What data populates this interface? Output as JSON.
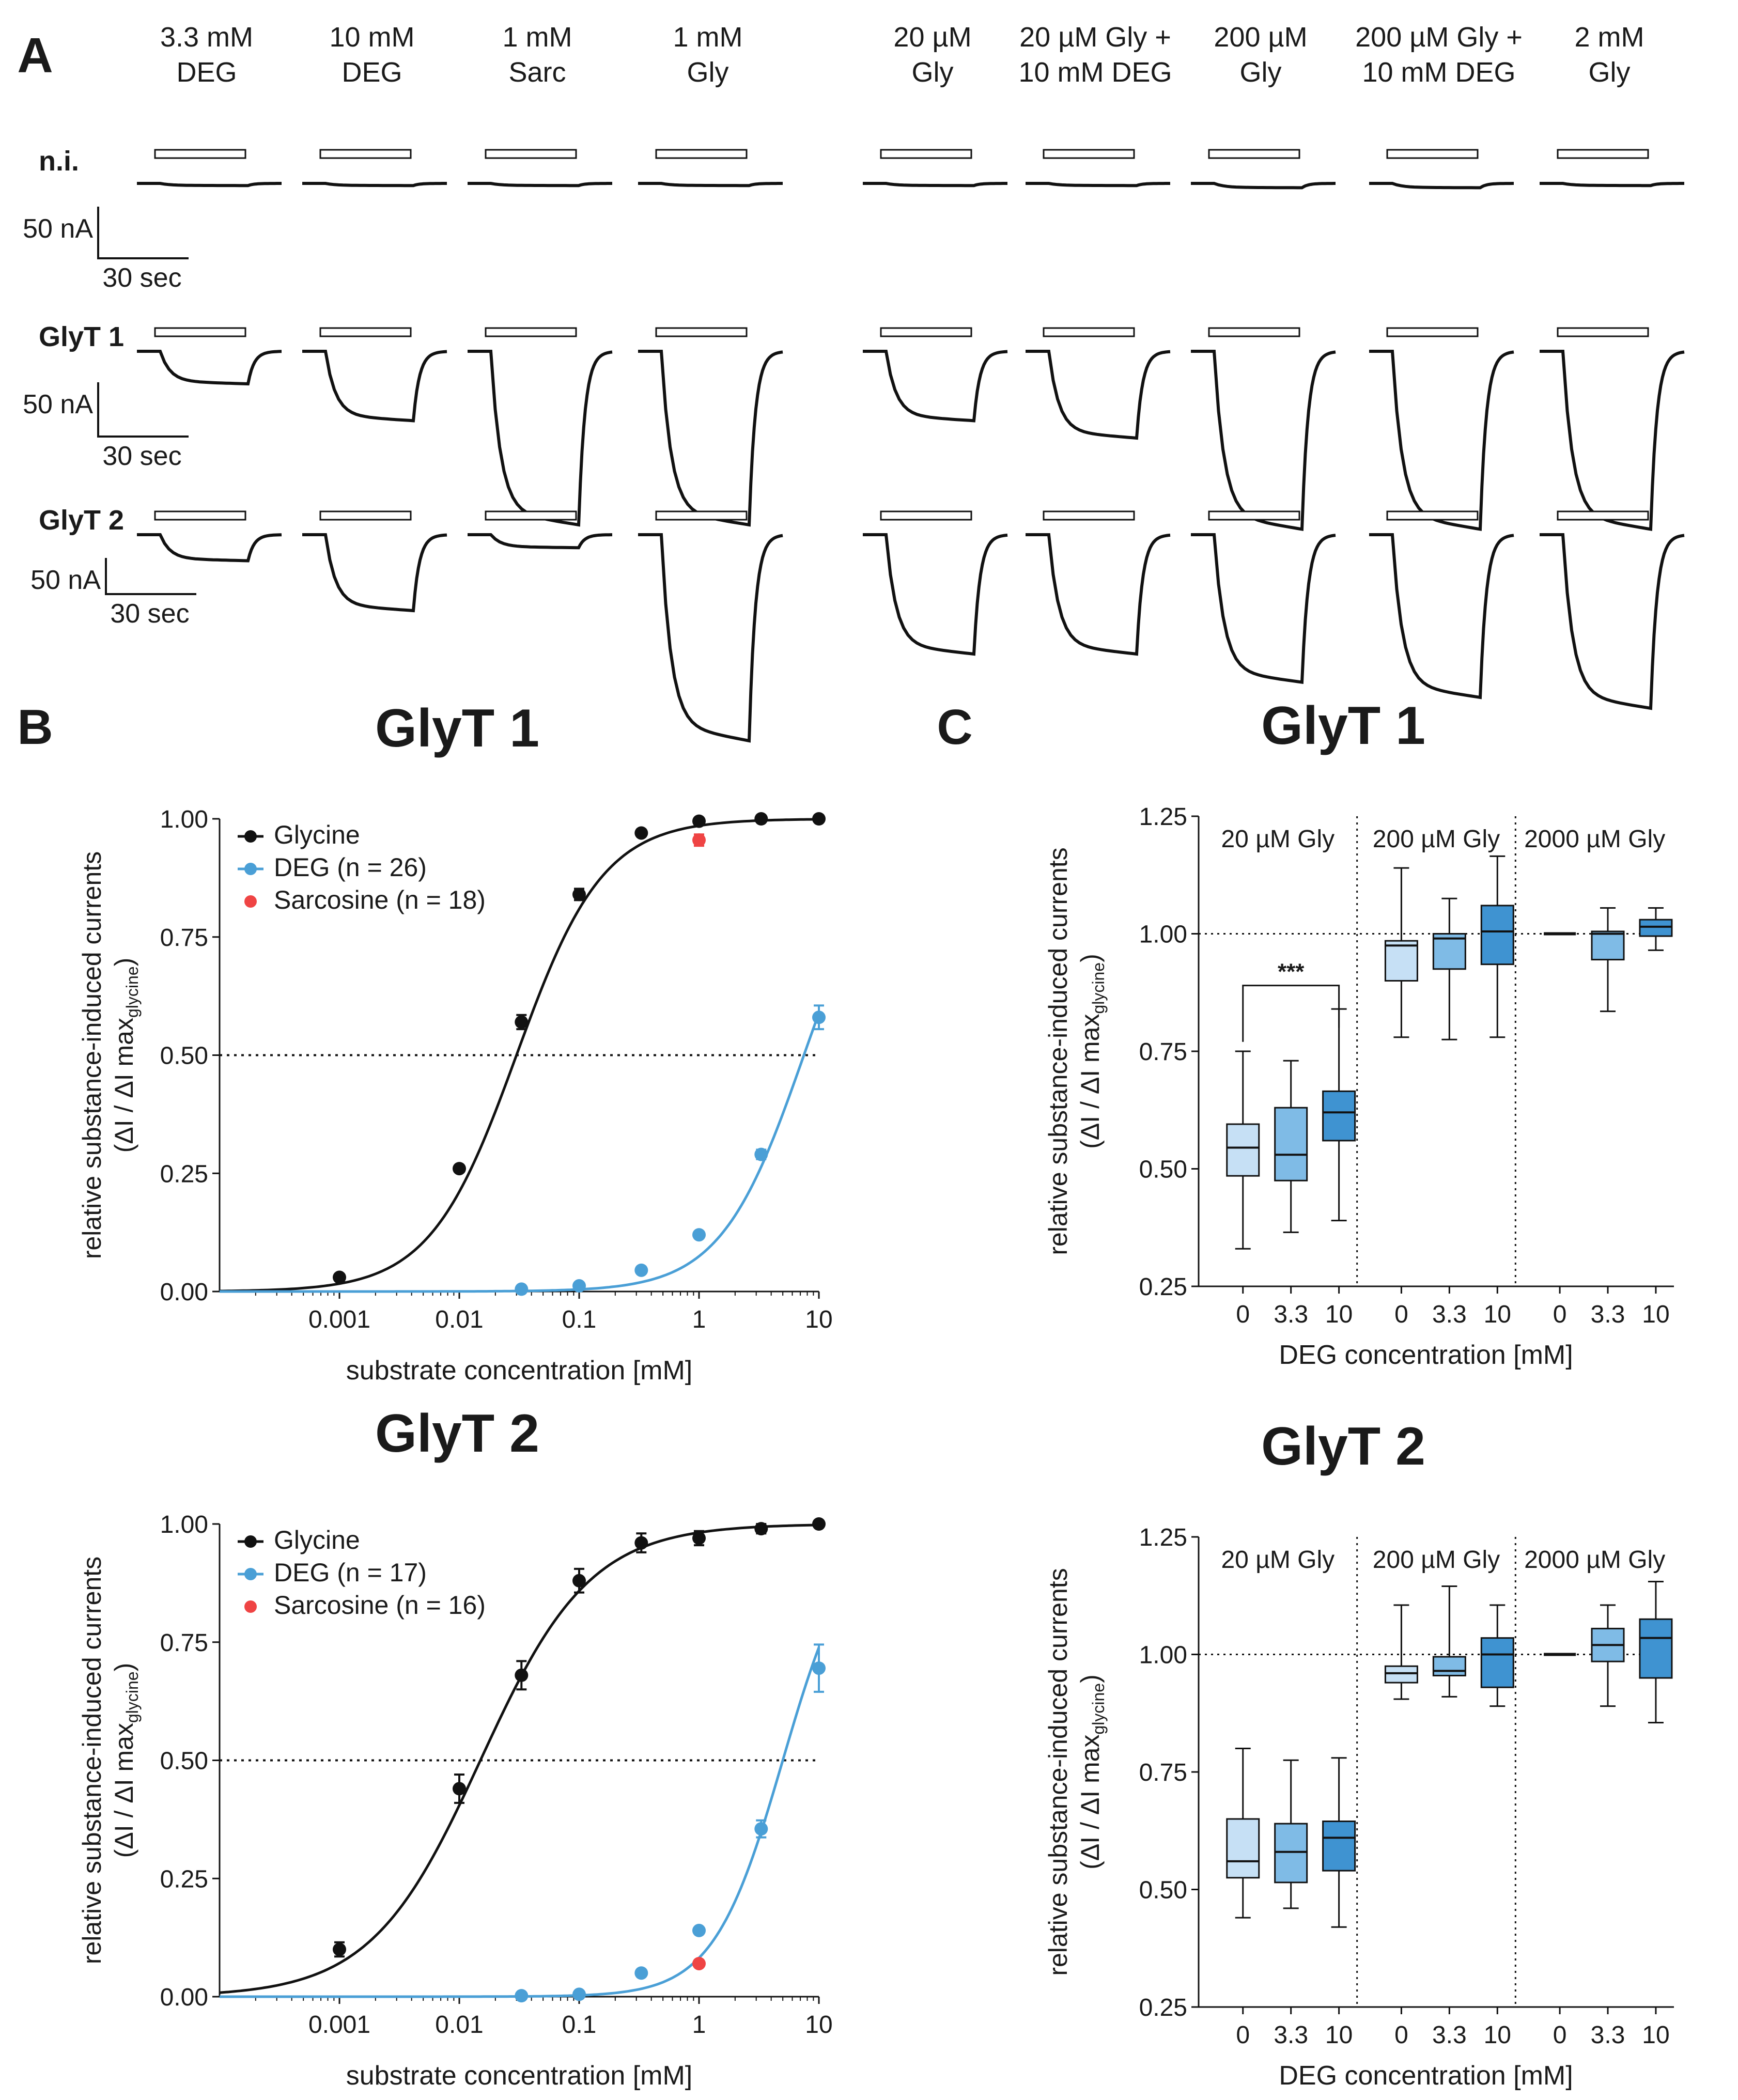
{
  "colors": {
    "black": "#111111",
    "glycine": "#111111",
    "deg": "#4a9fd6",
    "sarcosine": "#ef4444",
    "box0": "#c6e0f5",
    "box33": "#7fbbe6",
    "box10": "#3f93d1"
  },
  "panel_letters": {
    "a": "A",
    "b": "B",
    "c": "C"
  },
  "panel_a": {
    "conditions": [
      {
        "line1": "3.3 mM",
        "line2": "DEG"
      },
      {
        "line1": "10 mM",
        "line2": "DEG"
      },
      {
        "line1": "1 mM",
        "line2": "Sarc"
      },
      {
        "line1": "1 mM",
        "line2": "Gly"
      },
      {
        "line1": "20 µM",
        "line2": "Gly"
      },
      {
        "line1": "20 µM Gly +",
        "line2": "10 mM DEG"
      },
      {
        "line1": "200 µM",
        "line2": "Gly"
      },
      {
        "line1": "200 µM Gly +",
        "line2": "10 mM DEG"
      },
      {
        "line1": "2 mM",
        "line2": "Gly"
      }
    ],
    "rows": [
      {
        "label": "n.i.",
        "depth_nA": [
          1,
          1,
          1,
          1,
          1,
          1,
          2,
          2,
          1
        ]
      },
      {
        "label": "GlyT 1",
        "depth_nA": [
          15,
          32,
          80,
          80,
          32,
          40,
          82,
          82,
          82
        ]
      },
      {
        "label": "GlyT 2",
        "depth_nA": [
          12,
          35,
          6,
          95,
          55,
          55,
          68,
          75,
          80
        ]
      }
    ],
    "scale_bar": {
      "current": "50 nA",
      "time": "30 sec"
    }
  },
  "panel_b": {
    "chart_data": [
      {
        "type": "line",
        "title": "GlyT 1",
        "xlabel": "substrate concentration [mM]",
        "ylabel_line1": "relative substance-induced currents",
        "ylabel_line2_main": "(ΔI / ΔI max",
        "ylabel_line2_sub": "glycine",
        "ylabel_line2_end": ")",
        "xscale": "log",
        "xlim": [
          0.0001,
          10
        ],
        "ylim": [
          0,
          1
        ],
        "xticks": [
          {
            "v": 0.001,
            "label": "0.001"
          },
          {
            "v": 0.01,
            "label": "0.01"
          },
          {
            "v": 0.1,
            "label": "0.1"
          },
          {
            "v": 1,
            "label": "1"
          },
          {
            "v": 10,
            "label": "10"
          }
        ],
        "yticks": [
          "0.00",
          "0.25",
          "0.50",
          "0.75",
          "1.00"
        ],
        "reference_line": 0.5,
        "legend": [
          {
            "label": "Glycine",
            "series": "glycine",
            "line": true
          },
          {
            "label": "DEG (n = 26)",
            "series": "deg",
            "line": true
          },
          {
            "label": "Sarcosine (n = 18)",
            "series": "sarcosine",
            "line": false
          }
        ],
        "series": [
          {
            "name": "glycine",
            "x": [
              0.001,
              0.01,
              0.033,
              0.1,
              0.33,
              1,
              3.3,
              10
            ],
            "y": [
              0.03,
              0.26,
              0.57,
              0.84,
              0.97,
              0.995,
              1.0,
              1.0
            ],
            "err": [
              0,
              0,
              0.015,
              0.012,
              0,
              0,
              0,
              0
            ],
            "ec50": 0.03,
            "hill": 1.2
          },
          {
            "name": "deg",
            "x": [
              0.033,
              0.1,
              0.33,
              1,
              3.3,
              10
            ],
            "y": [
              0.005,
              0.012,
              0.045,
              0.12,
              0.29,
              0.58
            ],
            "err": [
              0,
              0,
              0,
              0,
              0.01,
              0.025
            ],
            "ec50": 7.5,
            "hill": 1.25
          },
          {
            "name": "sarcosine",
            "x": [
              1
            ],
            "y": [
              0.955
            ],
            "err": [
              0.012
            ]
          }
        ]
      },
      {
        "type": "line",
        "title": "GlyT 2",
        "xlabel": "substrate concentration [mM]",
        "ylabel_line1": "relative substance-induced currents",
        "ylabel_line2_main": "(ΔI / ΔI max",
        "ylabel_line2_sub": "glycine",
        "ylabel_line2_end": ")",
        "xscale": "log",
        "xlim": [
          0.0001,
          10
        ],
        "ylim": [
          0,
          1
        ],
        "xticks": [
          {
            "v": 0.001,
            "label": "0.001"
          },
          {
            "v": 0.01,
            "label": "0.01"
          },
          {
            "v": 0.1,
            "label": "0.1"
          },
          {
            "v": 1,
            "label": "1"
          },
          {
            "v": 10,
            "label": "10"
          }
        ],
        "yticks": [
          "0.00",
          "0.25",
          "0.50",
          "0.75",
          "1.00"
        ],
        "reference_line": 0.5,
        "legend": [
          {
            "label": "Glycine",
            "series": "glycine",
            "line": true
          },
          {
            "label": "DEG (n = 17)",
            "series": "deg",
            "line": true
          },
          {
            "label": "Sarcosine (n = 16)",
            "series": "sarcosine",
            "line": false
          }
        ],
        "series": [
          {
            "name": "glycine",
            "x": [
              0.001,
              0.01,
              0.033,
              0.1,
              0.33,
              1,
              3.3,
              10
            ],
            "y": [
              0.1,
              0.44,
              0.68,
              0.88,
              0.96,
              0.97,
              0.99,
              1.0
            ],
            "err": [
              0.015,
              0.03,
              0.03,
              0.025,
              0.02,
              0.015,
              0.01,
              0
            ],
            "ec50": 0.015,
            "hill": 0.95
          },
          {
            "name": "deg",
            "x": [
              0.033,
              0.1,
              0.33,
              1,
              3.3,
              10
            ],
            "y": [
              0.002,
              0.005,
              0.05,
              0.14,
              0.355,
              0.695
            ],
            "err": [
              0,
              0,
              0,
              0,
              0.018,
              0.05
            ],
            "ec50": 5.0,
            "hill": 1.5
          },
          {
            "name": "sarcosine",
            "x": [
              1
            ],
            "y": [
              0.07
            ],
            "err": [
              0
            ]
          }
        ]
      }
    ]
  },
  "panel_c": {
    "chart_data": [
      {
        "type": "box",
        "title": "GlyT 1",
        "xlabel": "DEG concentration [mM]",
        "ylabel_line1": "relative substance-induced currents",
        "ylabel_line2_main": "(ΔI / ΔI max",
        "ylabel_line2_sub": "glycine",
        "ylabel_line2_end": ")",
        "ylim": [
          0.25,
          1.25
        ],
        "yticks": [
          "0.25",
          "0.50",
          "0.75",
          "1.00",
          "1.25"
        ],
        "reference_line": 1.0,
        "significance": {
          "label": "***",
          "group": 0,
          "from": 0,
          "to": 2,
          "y": 0.77
        },
        "groups": [
          {
            "label": "20 µM Gly",
            "boxes": [
              {
                "deg": "0",
                "min": 0.33,
                "q1": 0.485,
                "median": 0.545,
                "q3": 0.595,
                "max": 0.75
              },
              {
                "deg": "3.3",
                "min": 0.365,
                "q1": 0.475,
                "median": 0.53,
                "q3": 0.63,
                "max": 0.73
              },
              {
                "deg": "10",
                "min": 0.39,
                "q1": 0.56,
                "median": 0.62,
                "q3": 0.665,
                "max": 0.84
              }
            ]
          },
          {
            "label": "200 µM Gly",
            "boxes": [
              {
                "deg": "0",
                "min": 0.78,
                "q1": 0.9,
                "median": 0.975,
                "q3": 0.985,
                "max": 1.14
              },
              {
                "deg": "3.3",
                "min": 0.775,
                "q1": 0.925,
                "median": 0.99,
                "q3": 1.0,
                "max": 1.075
              },
              {
                "deg": "10",
                "min": 0.78,
                "q1": 0.935,
                "median": 1.005,
                "q3": 1.06,
                "max": 1.165
              }
            ]
          },
          {
            "label": "2000 µM Gly",
            "boxes": [
              {
                "deg": "0",
                "min": 1.0,
                "q1": 1.0,
                "median": 1.0,
                "q3": 1.0,
                "max": 1.0
              },
              {
                "deg": "3.3",
                "min": 0.835,
                "q1": 0.945,
                "median": 1.0,
                "q3": 1.005,
                "max": 1.055
              },
              {
                "deg": "10",
                "min": 0.965,
                "q1": 0.995,
                "median": 1.015,
                "q3": 1.03,
                "max": 1.055
              }
            ]
          }
        ]
      },
      {
        "type": "box",
        "title": "GlyT 2",
        "xlabel": "DEG concentration [mM]",
        "ylabel_line1": "relative substance-induced currents",
        "ylabel_line2_main": "(ΔI / ΔI max",
        "ylabel_line2_sub": "glycine",
        "ylabel_line2_end": ")",
        "ylim": [
          0.25,
          1.25
        ],
        "yticks": [
          "0.25",
          "0.50",
          "0.75",
          "1.00",
          "1.25"
        ],
        "reference_line": 1.0,
        "significance": null,
        "groups": [
          {
            "label": "20 µM Gly",
            "boxes": [
              {
                "deg": "0",
                "min": 0.44,
                "q1": 0.525,
                "median": 0.56,
                "q3": 0.65,
                "max": 0.8
              },
              {
                "deg": "3.3",
                "min": 0.46,
                "q1": 0.515,
                "median": 0.58,
                "q3": 0.64,
                "max": 0.775
              },
              {
                "deg": "10",
                "min": 0.42,
                "q1": 0.54,
                "median": 0.61,
                "q3": 0.645,
                "max": 0.78
              }
            ]
          },
          {
            "label": "200 µM Gly",
            "boxes": [
              {
                "deg": "0",
                "min": 0.905,
                "q1": 0.94,
                "median": 0.96,
                "q3": 0.975,
                "max": 1.105
              },
              {
                "deg": "3.3",
                "min": 0.91,
                "q1": 0.955,
                "median": 0.965,
                "q3": 0.995,
                "max": 1.145
              },
              {
                "deg": "10",
                "min": 0.89,
                "q1": 0.93,
                "median": 1.0,
                "q3": 1.035,
                "max": 1.105
              }
            ]
          },
          {
            "label": "2000 µM Gly",
            "boxes": [
              {
                "deg": "0",
                "min": 1.0,
                "q1": 1.0,
                "median": 1.0,
                "q3": 1.0,
                "max": 1.0
              },
              {
                "deg": "3.3",
                "min": 0.89,
                "q1": 0.985,
                "median": 1.02,
                "q3": 1.055,
                "max": 1.105
              },
              {
                "deg": "10",
                "min": 0.855,
                "q1": 0.95,
                "median": 1.035,
                "q3": 1.075,
                "max": 1.155
              }
            ]
          }
        ]
      }
    ]
  }
}
